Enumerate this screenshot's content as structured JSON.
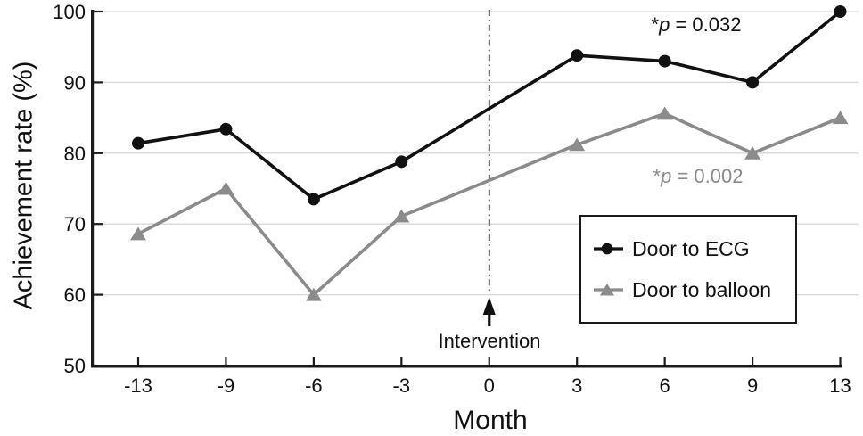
{
  "figure_kind": "statistical line chart",
  "chart_data": {
    "type": "line",
    "title": "",
    "xlabel": "Month",
    "ylabel": "Achievement rate (%)",
    "x_ticks": [
      -13,
      -9,
      -6,
      -3,
      0,
      3,
      6,
      9,
      13
    ],
    "y_ticks": [
      50,
      60,
      70,
      80,
      90,
      100
    ],
    "ylim": [
      50,
      100
    ],
    "grid": "horizontal",
    "legend_position": "inside-lower-right",
    "series": [
      {
        "name": "Door to ECG",
        "marker": "circle",
        "color": "#111111",
        "x": [
          -13,
          -9,
          -6,
          -3,
          3,
          6,
          9,
          13
        ],
        "values": [
          81.4,
          83.4,
          73.5,
          78.8,
          93.8,
          93.0,
          90.0,
          100.0
        ],
        "p_value": {
          "star": "*",
          "var": "p",
          "rest": " = 0.032",
          "text": "*p = 0.032",
          "color": "#111111"
        }
      },
      {
        "name": "Door to balloon",
        "marker": "triangle",
        "color": "#8b8b8b",
        "x": [
          -13,
          -9,
          -6,
          -3,
          3,
          6,
          9,
          13
        ],
        "values": [
          68.6,
          75.0,
          60.0,
          71.1,
          81.2,
          85.6,
          80.0,
          85.0
        ],
        "p_value": {
          "star": "*",
          "var": "p",
          "rest": " = 0.002",
          "text": "*p = 0.002",
          "color": "#8a8a8a"
        }
      }
    ],
    "annotations": [
      {
        "type": "vline-arrow",
        "x": 0,
        "label": "Intervention",
        "line_style": "dash-dot"
      }
    ],
    "colors": {
      "axis": "#1a1a1a",
      "gridline": "#d8d8d8",
      "reference_line": "#2e2e2e",
      "background": "#ffffff"
    }
  }
}
